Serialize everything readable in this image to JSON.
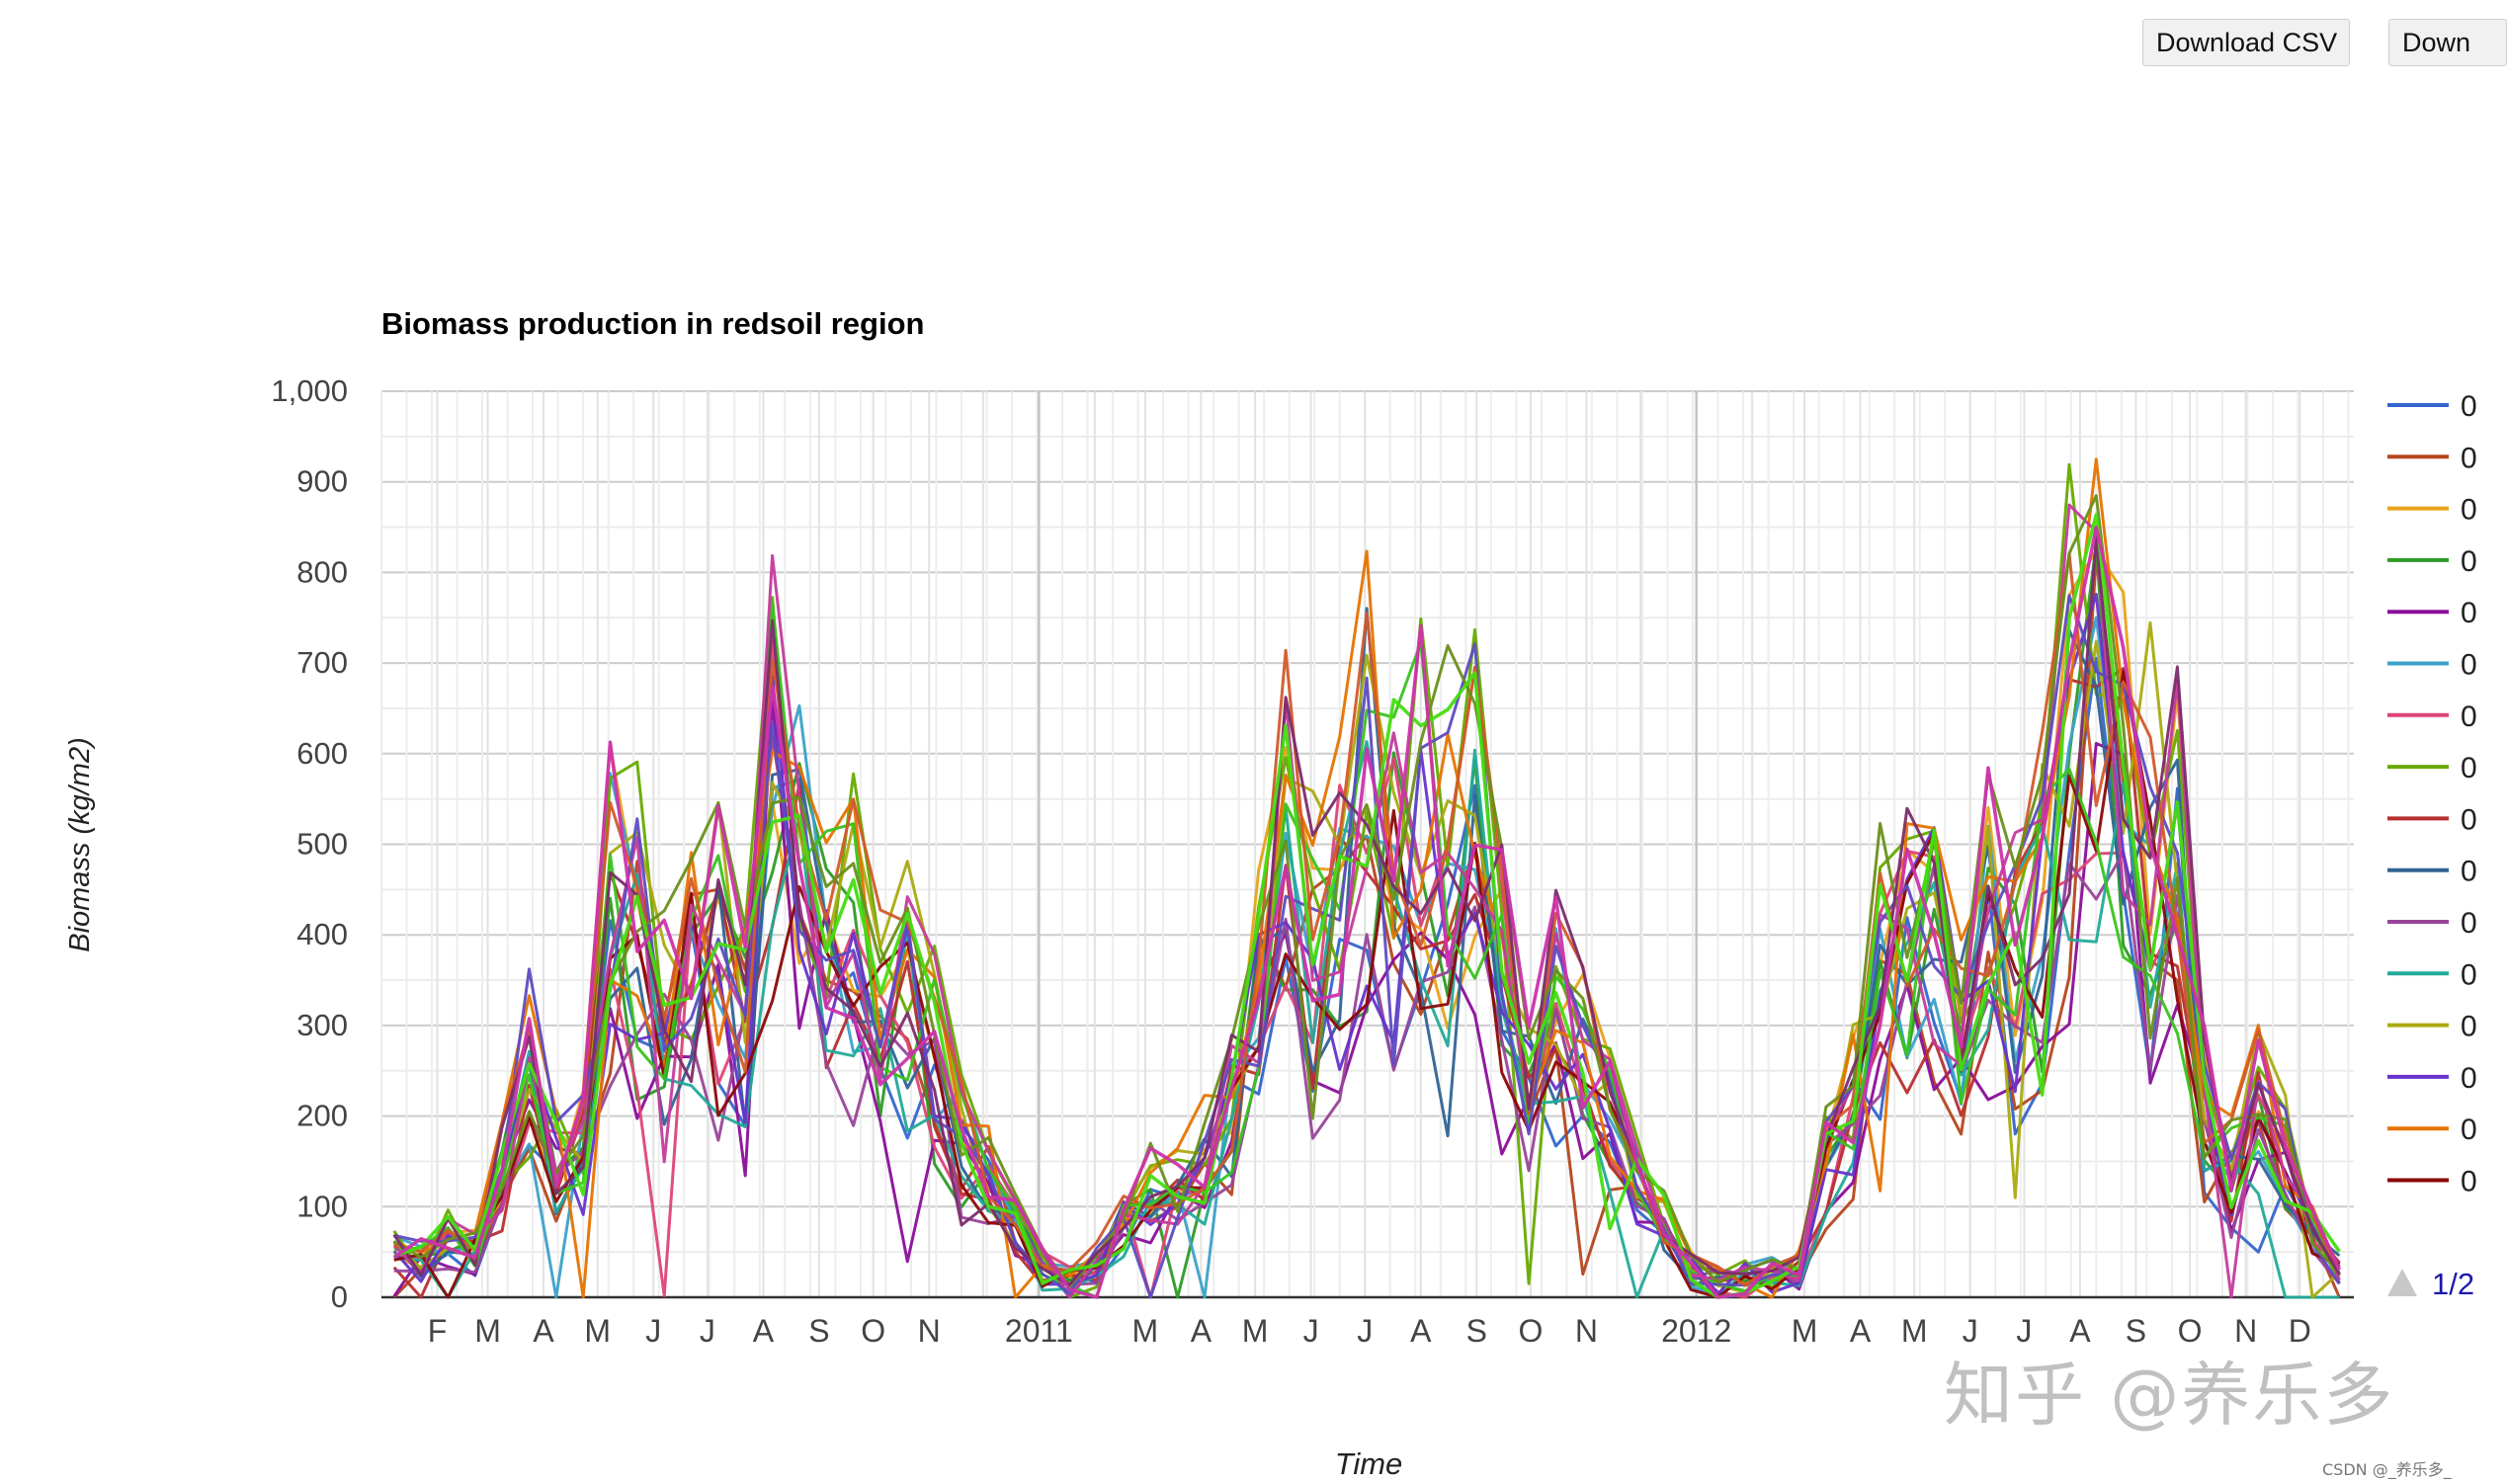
{
  "toolbar": {
    "download_csv_label": "Download CSV",
    "download_second_label": "Down"
  },
  "watermark": {
    "main": "知乎 @养乐多",
    "small": "CSDN @_养乐多_"
  },
  "legend": {
    "page_indicator": "1/2",
    "entry_initial": "0",
    "up_arrow_icon": "triangle-up-icon"
  },
  "chart_data": {
    "type": "line",
    "title": "Biomass production in redsoil region",
    "xlabel": "Time",
    "ylabel": "Biomass (kg/m2)",
    "ylim": [
      0,
      1000
    ],
    "yticks": [
      "0",
      "100",
      "200",
      "300",
      "400",
      "500",
      "600",
      "700",
      "800",
      "900",
      "1,000"
    ],
    "x_axis": {
      "start": "2010-01-01",
      "end": "2012-12-31",
      "tick_labels": [
        "F",
        "M",
        "A",
        "M",
        "J",
        "J",
        "A",
        "S",
        "O",
        "N",
        "2011",
        "M",
        "A",
        "M",
        "J",
        "J",
        "A",
        "S",
        "O",
        "N",
        "2012",
        "M",
        "A",
        "M",
        "J",
        "J",
        "A",
        "S",
        "O",
        "N",
        "D"
      ]
    },
    "grid": true,
    "legend_position": "right",
    "series_colors": [
      "#3366cc",
      "#b5461c",
      "#e8a21a",
      "#2e9a26",
      "#8a0e9a",
      "#3ba1c9",
      "#dd4477",
      "#66aa00",
      "#b82e2e",
      "#316395",
      "#994499",
      "#22aa99",
      "#aaaa11",
      "#6633cc",
      "#e67300",
      "#8b0707",
      "#38c31e",
      "#c43b9b",
      "#5e4bc2",
      "#d25a2a",
      "#6a8f1a",
      "#7b2c6b"
    ],
    "highlight_colors": [
      "#44dd11",
      "#cc33aa"
    ],
    "centroid": [
      {
        "date": "2010-01-08",
        "value": 55
      },
      {
        "date": "2010-01-23",
        "value": 40
      },
      {
        "date": "2010-02-07",
        "value": 65
      },
      {
        "date": "2010-02-22",
        "value": 50
      },
      {
        "date": "2010-03-09",
        "value": 130
      },
      {
        "date": "2010-03-24",
        "value": 250
      },
      {
        "date": "2010-04-08",
        "value": 140
      },
      {
        "date": "2010-04-23",
        "value": 160
      },
      {
        "date": "2010-05-08",
        "value": 420
      },
      {
        "date": "2010-05-23",
        "value": 400
      },
      {
        "date": "2010-06-07",
        "value": 300
      },
      {
        "date": "2010-06-22",
        "value": 370
      },
      {
        "date": "2010-07-07",
        "value": 360
      },
      {
        "date": "2010-07-22",
        "value": 300
      },
      {
        "date": "2010-08-06",
        "value": 600
      },
      {
        "date": "2010-08-21",
        "value": 490
      },
      {
        "date": "2010-09-05",
        "value": 380
      },
      {
        "date": "2010-09-20",
        "value": 400
      },
      {
        "date": "2010-10-05",
        "value": 300
      },
      {
        "date": "2010-10-20",
        "value": 330
      },
      {
        "date": "2010-11-04",
        "value": 260
      },
      {
        "date": "2010-11-19",
        "value": 170
      },
      {
        "date": "2010-12-04",
        "value": 140
      },
      {
        "date": "2010-12-19",
        "value": 75
      },
      {
        "date": "2011-01-03",
        "value": 30
      },
      {
        "date": "2011-01-18",
        "value": 15
      },
      {
        "date": "2011-02-02",
        "value": 40
      },
      {
        "date": "2011-02-17",
        "value": 80
      },
      {
        "date": "2011-03-04",
        "value": 110
      },
      {
        "date": "2011-03-19",
        "value": 110
      },
      {
        "date": "2011-04-03",
        "value": 150
      },
      {
        "date": "2011-04-18",
        "value": 200
      },
      {
        "date": "2011-05-03",
        "value": 320
      },
      {
        "date": "2011-05-18",
        "value": 480
      },
      {
        "date": "2011-06-02",
        "value": 380
      },
      {
        "date": "2011-06-17",
        "value": 440
      },
      {
        "date": "2011-07-02",
        "value": 560
      },
      {
        "date": "2011-07-17",
        "value": 480
      },
      {
        "date": "2011-08-01",
        "value": 520
      },
      {
        "date": "2011-08-16",
        "value": 470
      },
      {
        "date": "2011-08-31",
        "value": 520
      },
      {
        "date": "2011-09-15",
        "value": 340
      },
      {
        "date": "2011-09-30",
        "value": 220
      },
      {
        "date": "2011-10-15",
        "value": 340
      },
      {
        "date": "2011-10-30",
        "value": 250
      },
      {
        "date": "2011-11-14",
        "value": 180
      },
      {
        "date": "2011-11-29",
        "value": 120
      },
      {
        "date": "2011-12-14",
        "value": 80
      },
      {
        "date": "2011-12-29",
        "value": 30
      },
      {
        "date": "2012-01-13",
        "value": 15
      },
      {
        "date": "2012-01-28",
        "value": 20
      },
      {
        "date": "2012-02-12",
        "value": 25
      },
      {
        "date": "2012-02-27",
        "value": 30
      },
      {
        "date": "2012-03-13",
        "value": 140
      },
      {
        "date": "2012-03-28",
        "value": 200
      },
      {
        "date": "2012-04-12",
        "value": 340
      },
      {
        "date": "2012-04-27",
        "value": 380
      },
      {
        "date": "2012-05-12",
        "value": 420
      },
      {
        "date": "2012-05-27",
        "value": 300
      },
      {
        "date": "2012-06-11",
        "value": 390
      },
      {
        "date": "2012-06-26",
        "value": 380
      },
      {
        "date": "2012-07-11",
        "value": 420
      },
      {
        "date": "2012-07-26",
        "value": 600
      },
      {
        "date": "2012-08-10",
        "value": 700
      },
      {
        "date": "2012-08-25",
        "value": 560
      },
      {
        "date": "2012-09-09",
        "value": 500
      },
      {
        "date": "2012-09-24",
        "value": 480
      },
      {
        "date": "2012-10-09",
        "value": 200
      },
      {
        "date": "2012-10-24",
        "value": 140
      },
      {
        "date": "2012-11-08",
        "value": 200
      },
      {
        "date": "2012-11-23",
        "value": 150
      },
      {
        "date": "2012-12-08",
        "value": 70
      },
      {
        "date": "2012-12-23",
        "value": 30
      }
    ]
  }
}
